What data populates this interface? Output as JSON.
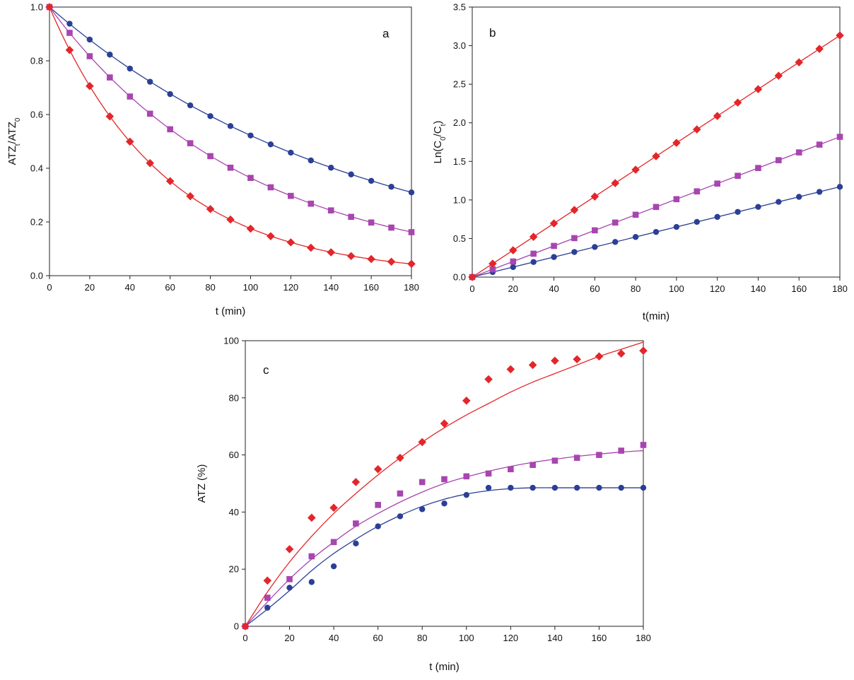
{
  "colors": {
    "blue": "#2b3f96",
    "purple": "#a845b0",
    "red": "#e3262a",
    "axis": "#222222",
    "grid": "#666666"
  },
  "chart_data": [
    {
      "id": "a",
      "type": "scatter",
      "panel_label": "a",
      "xlabel": "t (min)",
      "ylabel": {
        "main": "ATZ",
        "sub1": "t",
        "mid": "/ATZ",
        "sub2": "0"
      },
      "xlim": [
        0,
        180
      ],
      "ylim": [
        0,
        1.0
      ],
      "xticks": [
        0,
        20,
        40,
        60,
        80,
        100,
        120,
        140,
        160,
        180
      ],
      "yticks": [
        0.0,
        0.2,
        0.4,
        0.6,
        0.8,
        1.0
      ],
      "ytick_labels": [
        "0.0",
        "0.2",
        "0.4",
        "0.6",
        "0.8",
        "1.0"
      ],
      "x": [
        0,
        10,
        20,
        30,
        40,
        50,
        60,
        70,
        80,
        90,
        100,
        110,
        120,
        130,
        140,
        150,
        160,
        170,
        180
      ],
      "series": [
        {
          "name": "series-1",
          "color": "blue",
          "marker": "circle",
          "fit": "exp",
          "k": 0.0065,
          "values": [
            1.0,
            0.938,
            0.879,
            0.823,
            0.771,
            0.722,
            0.676,
            0.634,
            0.594,
            0.557,
            0.522,
            0.489,
            0.458,
            0.429,
            0.402,
            0.377,
            0.353,
            0.331,
            0.31
          ]
        },
        {
          "name": "series-2",
          "color": "purple",
          "marker": "square",
          "fit": "exp",
          "k": 0.0101,
          "values": [
            1.0,
            0.904,
            0.817,
            0.738,
            0.667,
            0.603,
            0.545,
            0.493,
            0.445,
            0.402,
            0.364,
            0.329,
            0.297,
            0.268,
            0.243,
            0.219,
            0.198,
            0.179,
            0.162
          ]
        },
        {
          "name": "series-3",
          "color": "red",
          "marker": "diamond",
          "fit": "exp",
          "k": 0.0174,
          "values": [
            1.0,
            0.84,
            0.706,
            0.593,
            0.499,
            0.419,
            0.352,
            0.296,
            0.248,
            0.209,
            0.175,
            0.147,
            0.124,
            0.104,
            0.087,
            0.073,
            0.062,
            0.052,
            0.044
          ]
        }
      ]
    },
    {
      "id": "b",
      "type": "scatter",
      "panel_label": "b",
      "xlabel": "t(min)",
      "ylabel": {
        "main": "Ln(C",
        "sub1": "0",
        "mid": "/C",
        "sub2": "t",
        "end": ")"
      },
      "xlim": [
        0,
        180
      ],
      "ylim": [
        0,
        3.5
      ],
      "xticks": [
        0,
        20,
        40,
        60,
        80,
        100,
        120,
        140,
        160,
        180
      ],
      "yticks": [
        0.0,
        0.5,
        1.0,
        1.5,
        2.0,
        2.5,
        3.0,
        3.5
      ],
      "ytick_labels": [
        "0.0",
        "0.5",
        "1.0",
        "1.5",
        "2.0",
        "2.5",
        "3.0",
        "3.5"
      ],
      "x": [
        0,
        10,
        20,
        30,
        40,
        50,
        60,
        70,
        80,
        90,
        100,
        110,
        120,
        130,
        140,
        150,
        160,
        170,
        180
      ],
      "series": [
        {
          "name": "series-1",
          "color": "blue",
          "marker": "circle",
          "fit": "linear",
          "slope": 0.0065,
          "values": [
            0,
            0.065,
            0.13,
            0.195,
            0.26,
            0.325,
            0.39,
            0.455,
            0.52,
            0.585,
            0.65,
            0.715,
            0.78,
            0.845,
            0.91,
            0.975,
            1.04,
            1.105,
            1.17
          ]
        },
        {
          "name": "series-2",
          "color": "purple",
          "marker": "square",
          "fit": "linear",
          "slope": 0.0101,
          "values": [
            0,
            0.101,
            0.202,
            0.303,
            0.404,
            0.505,
            0.606,
            0.707,
            0.808,
            0.909,
            1.01,
            1.111,
            1.212,
            1.313,
            1.414,
            1.515,
            1.616,
            1.717,
            1.818
          ]
        },
        {
          "name": "series-3",
          "color": "red",
          "marker": "diamond",
          "fit": "linear",
          "slope": 0.0174,
          "values": [
            0,
            0.174,
            0.348,
            0.522,
            0.696,
            0.87,
            1.044,
            1.218,
            1.392,
            1.566,
            1.74,
            1.914,
            2.088,
            2.262,
            2.436,
            2.61,
            2.784,
            2.958,
            3.132
          ]
        }
      ]
    },
    {
      "id": "c",
      "type": "scatter",
      "panel_label": "c",
      "xlabel": "t (min)",
      "ylabel": {
        "main": "ATZ (%)"
      },
      "xlim": [
        0,
        180
      ],
      "ylim": [
        0,
        100
      ],
      "xticks": [
        0,
        20,
        40,
        60,
        80,
        100,
        120,
        140,
        160,
        180
      ],
      "yticks": [
        0,
        20,
        40,
        60,
        80,
        100
      ],
      "ytick_labels": [
        "0",
        "20",
        "40",
        "60",
        "80",
        "100"
      ],
      "x": [
        0,
        10,
        20,
        30,
        40,
        50,
        60,
        70,
        80,
        90,
        100,
        110,
        120,
        130,
        140,
        150,
        160,
        170,
        180
      ],
      "series": [
        {
          "name": "series-1",
          "color": "blue",
          "marker": "circle",
          "fit": "smooth",
          "values": [
            0,
            6.5,
            13.5,
            15.5,
            21,
            29,
            35,
            38.5,
            41,
            43,
            46,
            48.5,
            48.5,
            48.5,
            48.5,
            48.5,
            48.5,
            48.5,
            48.5
          ],
          "curve": [
            0,
            6,
            12.5,
            19.5,
            25.5,
            30.5,
            35,
            38.8,
            42,
            44.5,
            46.3,
            47.5,
            48.2,
            48.5,
            48.5,
            48.5,
            48.5,
            48.5,
            48.5
          ]
        },
        {
          "name": "series-2",
          "color": "purple",
          "marker": "square",
          "fit": "smooth",
          "values": [
            0,
            10,
            16.5,
            24.5,
            29.5,
            36,
            42.5,
            46.5,
            50.5,
            51.5,
            52.5,
            53.5,
            55,
            56.5,
            58,
            59,
            60,
            61.5,
            63.5
          ],
          "curve": [
            0,
            8.5,
            16.5,
            23.5,
            29.5,
            35,
            39.5,
            43.5,
            47,
            50,
            52.3,
            54.3,
            56,
            57.4,
            58.5,
            59.5,
            60.3,
            61,
            61.5
          ]
        },
        {
          "name": "series-3",
          "color": "red",
          "marker": "diamond",
          "fit": "smooth",
          "values": [
            0,
            16,
            27,
            38,
            41.5,
            50.5,
            55,
            59,
            64.5,
            71,
            79,
            86.5,
            90,
            91.5,
            93,
            93.5,
            94.5,
            95.5,
            96.5
          ],
          "curve": [
            0,
            12,
            22.5,
            31.5,
            39.5,
            46.5,
            53,
            59,
            64.5,
            69.5,
            74,
            78,
            82,
            85.5,
            88.5,
            91.5,
            94.5,
            97,
            99.5
          ]
        }
      ]
    }
  ]
}
